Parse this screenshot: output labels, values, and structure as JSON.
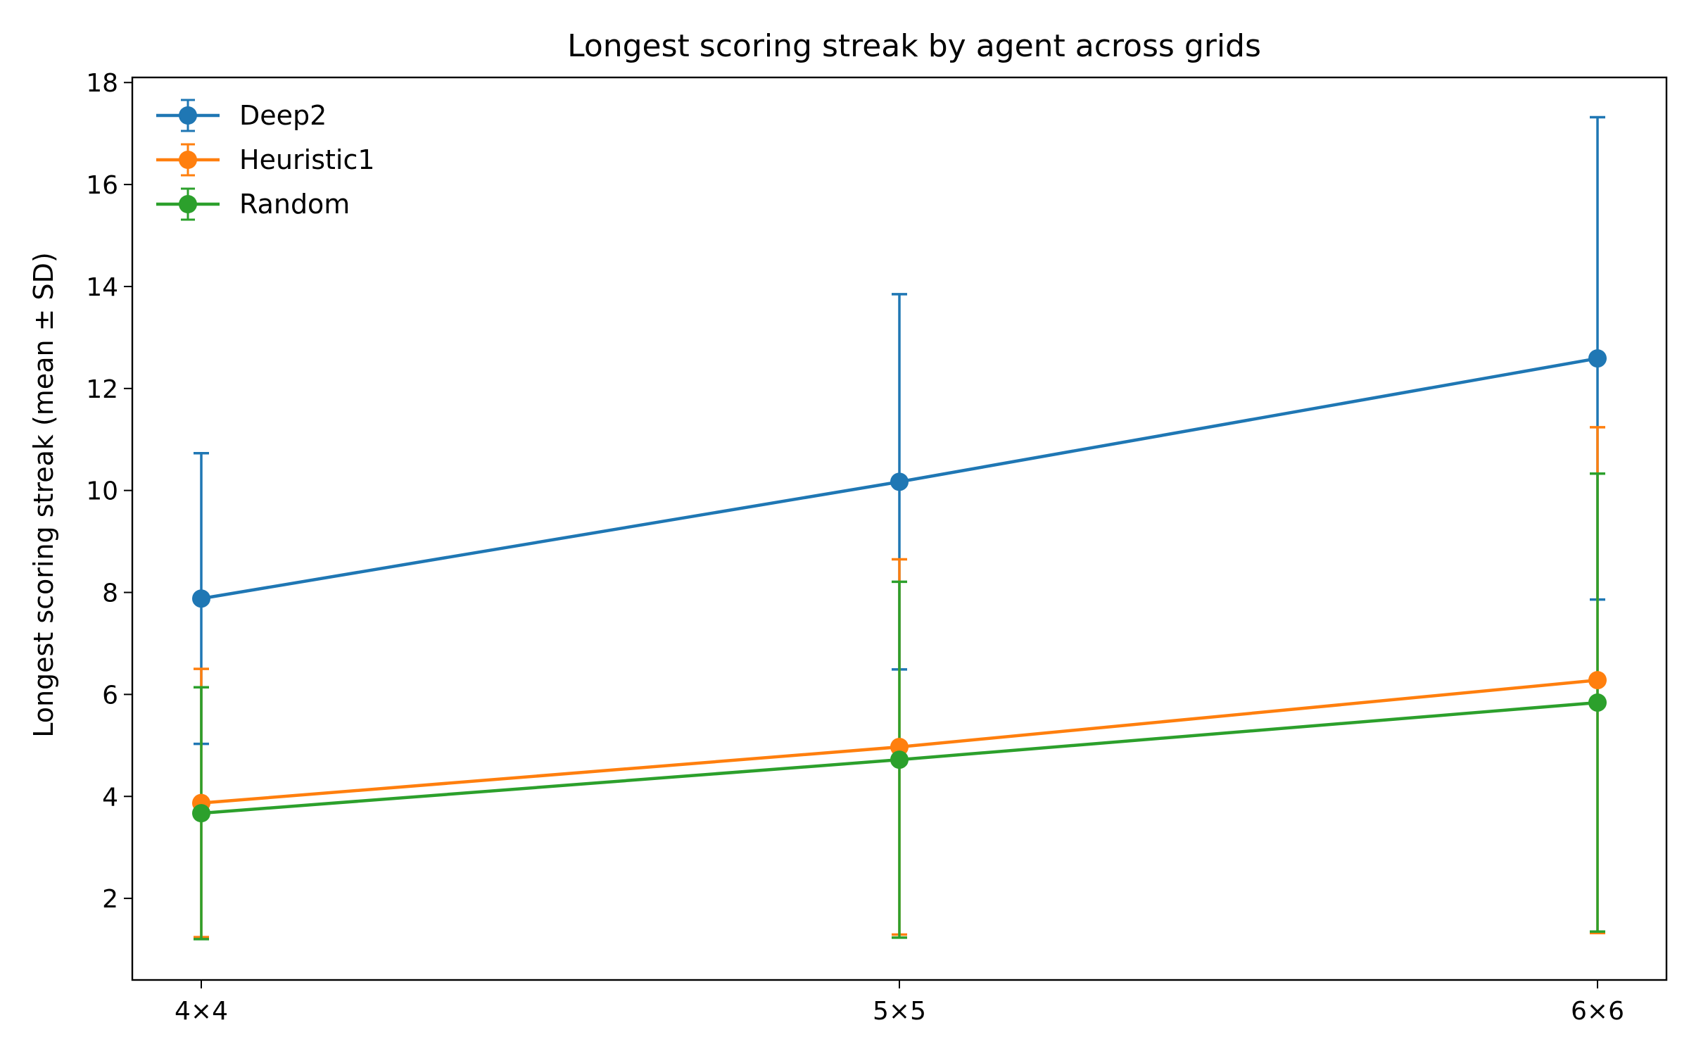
{
  "chart_data": {
    "type": "line",
    "title": "Longest scoring streak by agent across grids",
    "xlabel": "",
    "ylabel": "Longest scoring streak (mean ± SD)",
    "categories": [
      "4×4",
      "5×5",
      "6×6"
    ],
    "ylim": [
      0.4,
      18.1
    ],
    "yticks": [
      2,
      4,
      6,
      8,
      10,
      12,
      14,
      16,
      18
    ],
    "grid": false,
    "legend_position": "top-left",
    "series": [
      {
        "name": "Deep2",
        "color": "#1f77b4",
        "values": [
          7.88,
          10.17,
          12.59
        ],
        "sd": [
          2.85,
          3.68,
          4.73
        ]
      },
      {
        "name": "Heuristic1",
        "color": "#ff7f0e",
        "values": [
          3.87,
          4.97,
          6.28
        ],
        "sd": [
          2.63,
          3.68,
          4.96
        ]
      },
      {
        "name": "Random",
        "color": "#2ca02c",
        "values": [
          3.67,
          4.72,
          5.84
        ],
        "sd": [
          2.47,
          3.49,
          4.49
        ]
      }
    ]
  }
}
